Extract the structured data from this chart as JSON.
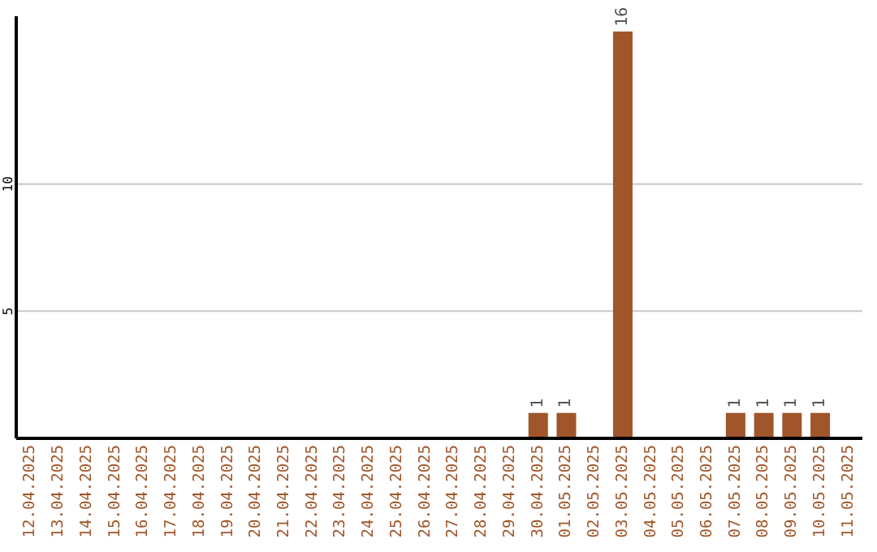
{
  "chart_data": {
    "type": "bar",
    "categories": [
      "12.04.2025",
      "13.04.2025",
      "14.04.2025",
      "15.04.2025",
      "16.04.2025",
      "17.04.2025",
      "18.04.2025",
      "19.04.2025",
      "20.04.2025",
      "21.04.2025",
      "22.04.2025",
      "23.04.2025",
      "24.04.2025",
      "25.04.2025",
      "26.04.2025",
      "27.04.2025",
      "28.04.2025",
      "29.04.2025",
      "30.04.2025",
      "01.05.2025",
      "02.05.2025",
      "03.05.2025",
      "04.05.2025",
      "05.05.2025",
      "06.05.2025",
      "07.05.2025",
      "08.05.2025",
      "09.05.2025",
      "10.05.2025",
      "11.05.2025"
    ],
    "values": [
      0,
      0,
      0,
      0,
      0,
      0,
      0,
      0,
      0,
      0,
      0,
      0,
      0,
      0,
      0,
      0,
      0,
      0,
      1,
      1,
      0,
      16,
      0,
      0,
      0,
      1,
      1,
      1,
      1,
      0
    ],
    "value_labels": [
      null,
      null,
      null,
      null,
      null,
      null,
      null,
      null,
      null,
      null,
      null,
      null,
      null,
      null,
      null,
      null,
      null,
      null,
      "1",
      "1",
      null,
      "16",
      null,
      null,
      null,
      "1",
      "1",
      "1",
      "1",
      null
    ],
    "color": "#a0562a",
    "ylim": [
      0,
      16.6
    ],
    "yticks": [
      5,
      10
    ],
    "grid": "y"
  }
}
